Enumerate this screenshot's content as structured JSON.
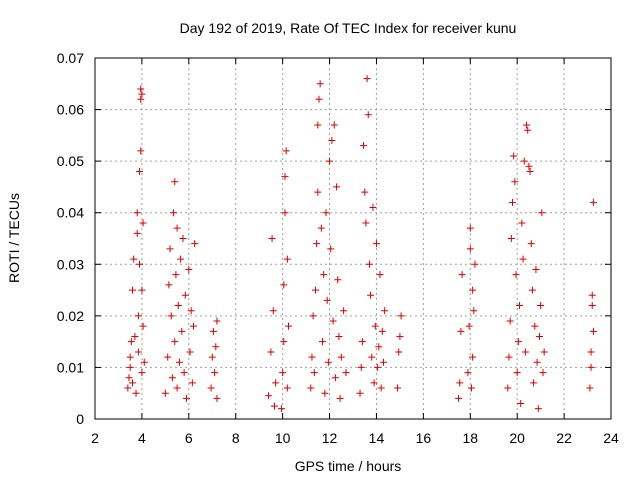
{
  "chart_data": {
    "type": "scatter",
    "title": "Day 192 of 2019, Rate Of TEC Index for receiver kunu",
    "xlabel": "GPS time / hours",
    "ylabel": "ROTI / TECUs",
    "xlim": [
      2,
      24
    ],
    "ylim": [
      0,
      0.07
    ],
    "x_ticks": [
      "2",
      "4",
      "6",
      "8",
      "10",
      "12",
      "14",
      "16",
      "18",
      "20",
      "22",
      "24"
    ],
    "y_ticks": [
      "0",
      "0.01",
      "0.02",
      "0.03",
      "0.04",
      "0.05",
      "0.06",
      "0.07"
    ],
    "grid": true,
    "marker": "+",
    "marker_color": "#e00000",
    "series": [
      {
        "name": "ROTI",
        "points": [
          [
            3.4,
            0.006
          ],
          [
            3.45,
            0.008
          ],
          [
            3.5,
            0.01
          ],
          [
            3.5,
            0.012
          ],
          [
            3.55,
            0.015
          ],
          [
            3.6,
            0.007
          ],
          [
            3.6,
            0.025
          ],
          [
            3.65,
            0.031
          ],
          [
            3.7,
            0.016
          ],
          [
            3.75,
            0.005
          ],
          [
            3.8,
            0.04
          ],
          [
            3.8,
            0.036
          ],
          [
            3.85,
            0.02
          ],
          [
            3.85,
            0.013
          ],
          [
            3.9,
            0.048
          ],
          [
            3.9,
            0.03
          ],
          [
            3.95,
            0.064
          ],
          [
            3.95,
            0.062
          ],
          [
            3.95,
            0.052
          ],
          [
            4.0,
            0.063
          ],
          [
            4.0,
            0.025
          ],
          [
            4.0,
            0.009
          ],
          [
            4.05,
            0.038
          ],
          [
            4.05,
            0.018
          ],
          [
            4.1,
            0.011
          ],
          [
            5.0,
            0.005
          ],
          [
            5.1,
            0.012
          ],
          [
            5.15,
            0.026
          ],
          [
            5.2,
            0.033
          ],
          [
            5.25,
            0.02
          ],
          [
            5.3,
            0.008
          ],
          [
            5.35,
            0.04
          ],
          [
            5.4,
            0.046
          ],
          [
            5.4,
            0.015
          ],
          [
            5.45,
            0.028
          ],
          [
            5.5,
            0.037
          ],
          [
            5.5,
            0.006
          ],
          [
            5.55,
            0.022
          ],
          [
            5.6,
            0.011
          ],
          [
            5.65,
            0.031
          ],
          [
            5.7,
            0.017
          ],
          [
            5.75,
            0.035
          ],
          [
            5.8,
            0.009
          ],
          [
            5.85,
            0.024
          ],
          [
            5.9,
            0.004
          ],
          [
            6.0,
            0.029
          ],
          [
            6.05,
            0.013
          ],
          [
            6.1,
            0.021
          ],
          [
            6.15,
            0.007
          ],
          [
            6.2,
            0.018
          ],
          [
            6.25,
            0.034
          ],
          [
            6.95,
            0.006
          ],
          [
            7.0,
            0.012
          ],
          [
            7.05,
            0.017
          ],
          [
            7.1,
            0.009
          ],
          [
            7.15,
            0.014
          ],
          [
            7.2,
            0.019
          ],
          [
            7.2,
            0.004
          ],
          [
            9.4,
            0.0045
          ],
          [
            9.5,
            0.013
          ],
          [
            9.55,
            0.035
          ],
          [
            9.6,
            0.021
          ],
          [
            9.65,
            0.0025
          ],
          [
            9.7,
            0.007
          ],
          [
            9.95,
            0.002
          ],
          [
            10.0,
            0.009
          ],
          [
            10.05,
            0.015
          ],
          [
            10.05,
            0.026
          ],
          [
            10.1,
            0.04
          ],
          [
            10.1,
            0.047
          ],
          [
            10.15,
            0.052
          ],
          [
            10.2,
            0.031
          ],
          [
            10.2,
            0.006
          ],
          [
            10.25,
            0.018
          ],
          [
            11.2,
            0.006
          ],
          [
            11.25,
            0.012
          ],
          [
            11.3,
            0.02
          ],
          [
            11.35,
            0.009
          ],
          [
            11.4,
            0.025
          ],
          [
            11.45,
            0.034
          ],
          [
            11.5,
            0.044
          ],
          [
            11.5,
            0.057
          ],
          [
            11.55,
            0.062
          ],
          [
            11.6,
            0.065
          ],
          [
            11.65,
            0.037
          ],
          [
            11.7,
            0.015
          ],
          [
            11.75,
            0.028
          ],
          [
            11.8,
            0.005
          ],
          [
            11.85,
            0.04
          ],
          [
            11.9,
            0.023
          ],
          [
            11.95,
            0.011
          ],
          [
            12.0,
            0.05
          ],
          [
            12.05,
            0.033
          ],
          [
            12.1,
            0.054
          ],
          [
            12.15,
            0.019
          ],
          [
            12.2,
            0.057
          ],
          [
            12.25,
            0.008
          ],
          [
            12.3,
            0.045
          ],
          [
            12.35,
            0.027
          ],
          [
            12.4,
            0.016
          ],
          [
            12.45,
            0.004
          ],
          [
            12.5,
            0.012
          ],
          [
            12.6,
            0.021
          ],
          [
            12.7,
            0.009
          ],
          [
            13.3,
            0.005
          ],
          [
            13.35,
            0.01
          ],
          [
            13.4,
            0.015
          ],
          [
            13.45,
            0.053
          ],
          [
            13.5,
            0.044
          ],
          [
            13.55,
            0.038
          ],
          [
            13.6,
            0.066
          ],
          [
            13.65,
            0.059
          ],
          [
            13.7,
            0.03
          ],
          [
            13.75,
            0.024
          ],
          [
            13.8,
            0.012
          ],
          [
            13.85,
            0.041
          ],
          [
            13.9,
            0.007
          ],
          [
            13.95,
            0.018
          ],
          [
            14.0,
            0.034
          ],
          [
            14.05,
            0.01
          ],
          [
            14.1,
            0.014
          ],
          [
            14.15,
            0.028
          ],
          [
            14.2,
            0.006
          ],
          [
            14.25,
            0.017
          ],
          [
            14.3,
            0.011
          ],
          [
            14.35,
            0.021
          ],
          [
            14.9,
            0.006
          ],
          [
            14.95,
            0.013
          ],
          [
            15.0,
            0.016
          ],
          [
            15.05,
            0.02
          ],
          [
            17.5,
            0.004
          ],
          [
            17.55,
            0.007
          ],
          [
            17.6,
            0.017
          ],
          [
            17.65,
            0.028
          ],
          [
            17.9,
            0.009
          ],
          [
            17.95,
            0.018
          ],
          [
            18.0,
            0.033
          ],
          [
            18.0,
            0.037
          ],
          [
            18.05,
            0.006
          ],
          [
            18.1,
            0.025
          ],
          [
            18.1,
            0.012
          ],
          [
            18.15,
            0.021
          ],
          [
            18.2,
            0.03
          ],
          [
            19.6,
            0.006
          ],
          [
            19.65,
            0.012
          ],
          [
            19.7,
            0.019
          ],
          [
            19.75,
            0.035
          ],
          [
            19.8,
            0.042
          ],
          [
            19.85,
            0.051
          ],
          [
            19.9,
            0.046
          ],
          [
            19.95,
            0.028
          ],
          [
            20.0,
            0.009
          ],
          [
            20.05,
            0.015
          ],
          [
            20.1,
            0.022
          ],
          [
            20.15,
            0.003
          ],
          [
            20.2,
            0.038
          ],
          [
            20.25,
            0.031
          ],
          [
            20.3,
            0.05
          ],
          [
            20.35,
            0.013
          ],
          [
            20.4,
            0.057
          ],
          [
            20.45,
            0.056
          ],
          [
            20.5,
            0.049
          ],
          [
            20.55,
            0.048
          ],
          [
            20.6,
            0.034
          ],
          [
            20.65,
            0.025
          ],
          [
            20.7,
            0.007
          ],
          [
            20.75,
            0.018
          ],
          [
            20.8,
            0.029
          ],
          [
            20.85,
            0.011
          ],
          [
            20.9,
            0.002
          ],
          [
            20.95,
            0.016
          ],
          [
            21.0,
            0.022
          ],
          [
            21.05,
            0.04
          ],
          [
            21.1,
            0.009
          ],
          [
            21.15,
            0.013
          ],
          [
            23.1,
            0.006
          ],
          [
            23.15,
            0.01
          ],
          [
            23.15,
            0.013
          ],
          [
            23.2,
            0.022
          ],
          [
            23.2,
            0.024
          ],
          [
            23.25,
            0.017
          ],
          [
            23.25,
            0.042
          ]
        ]
      }
    ]
  }
}
